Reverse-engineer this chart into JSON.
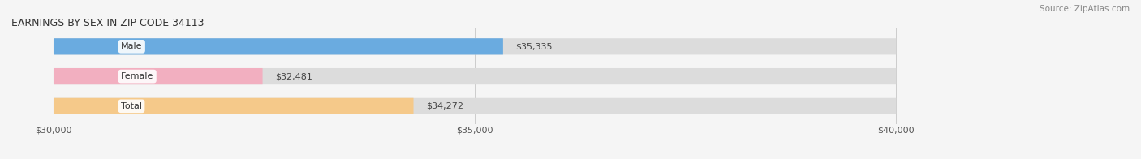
{
  "title": "EARNINGS BY SEX IN ZIP CODE 34113",
  "source": "Source: ZipAtlas.com",
  "categories": [
    "Male",
    "Female",
    "Total"
  ],
  "values": [
    35335,
    32481,
    34272
  ],
  "bar_colors": [
    "#6aabe0",
    "#f2afc0",
    "#f5c98a"
  ],
  "bar_bg_color": "#dcdcdc",
  "label_values": [
    "$35,335",
    "$32,481",
    "$34,272"
  ],
  "xmin": 30000,
  "xmax": 40000,
  "xticks": [
    30000,
    35000,
    40000
  ],
  "xtick_labels": [
    "$30,000",
    "$35,000",
    "$40,000"
  ],
  "title_fontsize": 9,
  "source_fontsize": 7.5,
  "label_fontsize": 8,
  "value_fontsize": 8,
  "bar_height": 0.55,
  "background_color": "#f5f5f5"
}
